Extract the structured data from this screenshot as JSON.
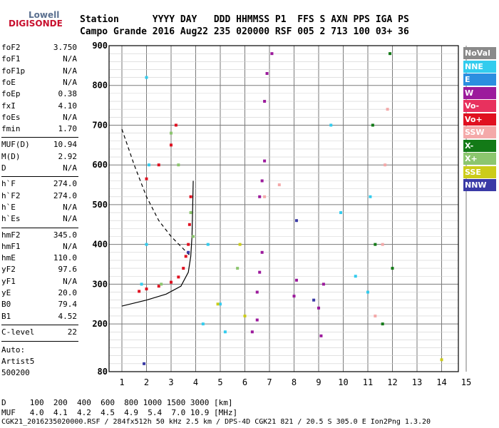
{
  "logo": {
    "line1": "Lowell",
    "line2": "DIGISONDE"
  },
  "header": {
    "row1": "Station      YYYY DAY   DDD HHMMSS P1  FFS S AXN PPS IGA PS",
    "row2": "Campo Grande 2016 Aug22 235 020000 RSF 005 2 713 100 03+ 36"
  },
  "params": [
    {
      "label": "foF2",
      "value": "3.750"
    },
    {
      "label": "foF1",
      "value": "N/A"
    },
    {
      "label": "foF1p",
      "value": "N/A"
    },
    {
      "label": "foE",
      "value": "N/A"
    },
    {
      "label": "foEp",
      "value": "0.38"
    },
    {
      "label": "fxI",
      "value": "4.10"
    },
    {
      "label": "foEs",
      "value": "N/A"
    },
    {
      "label": "fmin",
      "value": "1.70"
    },
    {
      "label": "MUF(D)",
      "value": "10.94"
    },
    {
      "label": "M(D)",
      "value": "2.92"
    },
    {
      "label": "D",
      "value": "N/A"
    },
    {
      "label": "h`F",
      "value": "274.0"
    },
    {
      "label": "h`F2",
      "value": "274.0"
    },
    {
      "label": "h`E",
      "value": "N/A"
    },
    {
      "label": "h`Es",
      "value": "N/A"
    },
    {
      "label": "hmF2",
      "value": "345.0"
    },
    {
      "label": "hmF1",
      "value": "N/A"
    },
    {
      "label": "hmE",
      "value": "110.0"
    },
    {
      "label": "yF2",
      "value": "97.6"
    },
    {
      "label": "yF1",
      "value": "N/A"
    },
    {
      "label": "yE",
      "value": "20.0"
    },
    {
      "label": "B0",
      "value": "79.4"
    },
    {
      "label": "B1",
      "value": "4.52"
    },
    {
      "label": "C-level",
      "value": "22"
    }
  ],
  "auto": {
    "line1": "Auto:",
    "line2": "Artist5",
    "line3": "500200"
  },
  "footer": {
    "d_line": "D     100  200  400  600  800 1000 1500 3000 [km]",
    "muf_line": "MUF   4.0  4.1  4.2  4.5  4.9  5.4  7.0 10.9 [MHz]",
    "file_line": "CGK21_2016235020000.RSF / 284fx512h 50 kHz 2.5 km / DPS-4D CGK21 821 / 20.5 S 305.0 E Ion2Png 1.3.20"
  },
  "legend": [
    {
      "label": "NoVal",
      "color": "#8a8a8a",
      "text": "#ffffff"
    },
    {
      "label": "NNE",
      "color": "#33ccee",
      "text": "#ffffff"
    },
    {
      "label": "E",
      "color": "#2c8ee0",
      "text": "#ffffff"
    },
    {
      "label": "W",
      "color": "#9c1a9c",
      "text": "#ffffff"
    },
    {
      "label": "Vo-",
      "color": "#e8315e",
      "text": "#ffffff"
    },
    {
      "label": "Vo+",
      "color": "#e01020",
      "text": "#ffffff"
    },
    {
      "label": "SSW",
      "color": "#f4a9a9",
      "text": "#ffffff"
    },
    {
      "label": "X-",
      "color": "#137a17",
      "text": "#ffffff"
    },
    {
      "label": "X+",
      "color": "#8cc66e",
      "text": "#ffffff"
    },
    {
      "label": "SSE",
      "color": "#cccc1a",
      "text": "#ffffff"
    },
    {
      "label": "NNW",
      "color": "#3a3aa6",
      "text": "#ffffff"
    }
  ],
  "chart_data": {
    "type": "scatter",
    "title": "",
    "xlabel": "",
    "ylabel": "",
    "xlim": [
      1,
      15
    ],
    "ylim": [
      80,
      900
    ],
    "grid": true,
    "x_ticks": [
      1,
      2,
      3,
      4,
      5,
      6,
      7,
      8,
      9,
      10,
      11,
      12,
      13,
      14,
      15
    ],
    "y_ticks": [
      80,
      200,
      300,
      400,
      500,
      600,
      700,
      800,
      900
    ],
    "series": [
      {
        "name": "Vo+",
        "color": "#e01020",
        "points": [
          [
            1.7,
            282
          ],
          [
            2.0,
            288
          ],
          [
            2.5,
            295
          ],
          [
            3.0,
            305
          ],
          [
            3.3,
            318
          ],
          [
            3.5,
            340
          ],
          [
            3.6,
            370
          ],
          [
            3.7,
            400
          ],
          [
            3.75,
            450
          ],
          [
            3.8,
            520
          ],
          [
            2.0,
            565
          ],
          [
            2.5,
            600
          ],
          [
            3.0,
            650
          ],
          [
            3.2,
            700
          ]
        ]
      },
      {
        "name": "W",
        "color": "#9c1a9c",
        "points": [
          [
            6.5,
            280
          ],
          [
            6.6,
            330
          ],
          [
            6.7,
            380
          ],
          [
            6.6,
            520
          ],
          [
            6.7,
            560
          ],
          [
            6.8,
            610
          ],
          [
            6.8,
            760
          ],
          [
            6.9,
            830
          ],
          [
            7.1,
            880
          ],
          [
            8.0,
            270
          ],
          [
            8.1,
            310
          ],
          [
            6.3,
            180
          ],
          [
            6.5,
            210
          ],
          [
            9.1,
            170
          ],
          [
            9.0,
            240
          ],
          [
            9.2,
            300
          ]
        ]
      },
      {
        "name": "NNE",
        "color": "#33ccee",
        "points": [
          [
            1.8,
            300
          ],
          [
            2.0,
            400
          ],
          [
            2.1,
            600
          ],
          [
            2.0,
            820
          ],
          [
            4.3,
            200
          ],
          [
            4.5,
            400
          ],
          [
            5.0,
            250
          ],
          [
            5.2,
            180
          ],
          [
            9.5,
            700
          ],
          [
            9.9,
            480
          ],
          [
            10.5,
            320
          ],
          [
            11.1,
            520
          ],
          [
            11.0,
            280
          ]
        ]
      },
      {
        "name": "X+",
        "color": "#8cc66e",
        "points": [
          [
            2.6,
            300
          ],
          [
            3.3,
            600
          ],
          [
            3.0,
            680
          ],
          [
            3.9,
            420
          ],
          [
            3.8,
            480
          ],
          [
            5.7,
            340
          ]
        ]
      },
      {
        "name": "X-",
        "color": "#137a17",
        "points": [
          [
            11.2,
            700
          ],
          [
            11.3,
            400
          ],
          [
            11.6,
            200
          ],
          [
            12.0,
            340
          ],
          [
            11.9,
            880
          ]
        ]
      },
      {
        "name": "SSW",
        "color": "#f4a9a9",
        "points": [
          [
            6.8,
            520
          ],
          [
            7.4,
            550
          ],
          [
            11.6,
            400
          ],
          [
            11.7,
            600
          ],
          [
            11.8,
            740
          ],
          [
            11.3,
            220
          ]
        ]
      },
      {
        "name": "SSE",
        "color": "#cccc1a",
        "points": [
          [
            4.9,
            250
          ],
          [
            5.8,
            400
          ],
          [
            6.0,
            220
          ],
          [
            14.0,
            110
          ]
        ]
      },
      {
        "name": "NNW",
        "color": "#3a3aa6",
        "points": [
          [
            1.9,
            100
          ],
          [
            3.7,
            380
          ],
          [
            8.1,
            460
          ],
          [
            8.8,
            260
          ]
        ]
      }
    ]
  }
}
